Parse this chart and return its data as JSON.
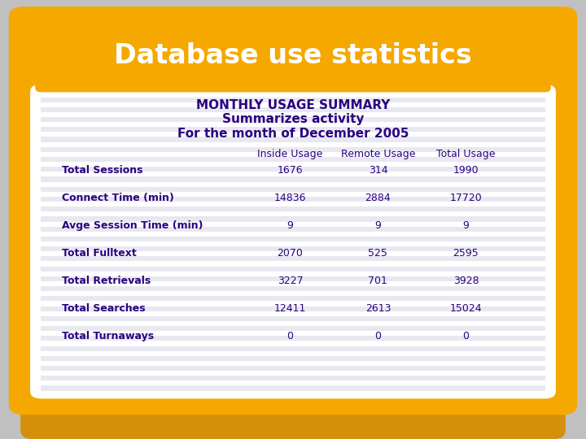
{
  "title": "Database use statistics",
  "title_color": "#FFFFFF",
  "title_bg_color": "#F5A800",
  "subtitle1": "MONTHLY USAGE SUMMARY",
  "subtitle2": "Summarizes activity",
  "subtitle3": "For the month of December 2005",
  "subtitle_color": "#2B0080",
  "col_headers": [
    "Inside Usage",
    "Remote Usage",
    "Total Usage"
  ],
  "row_labels": [
    "Total Sessions",
    "Connect Time (min)",
    "Avge Session Time (min)",
    "Total Fulltext",
    "Total Retrievals",
    "Total Searches",
    "Total Turnaways"
  ],
  "inside_usage": [
    "1676",
    "14836",
    "9",
    "2070",
    "3227",
    "12411",
    "0"
  ],
  "remote_usage": [
    "314",
    "2884",
    "9",
    "525",
    "701",
    "2613",
    "0"
  ],
  "total_usage": [
    "1990",
    "17720",
    "9",
    "2595",
    "3928",
    "15024",
    "0"
  ],
  "data_color": "#2B0080",
  "outer_bg": "#F5A800",
  "inner_bg": "#FFFFFF",
  "stripe_color": "#E8E8F0",
  "fig_bg": "#C0C0C0",
  "shadow_color": "#A0A0A0"
}
